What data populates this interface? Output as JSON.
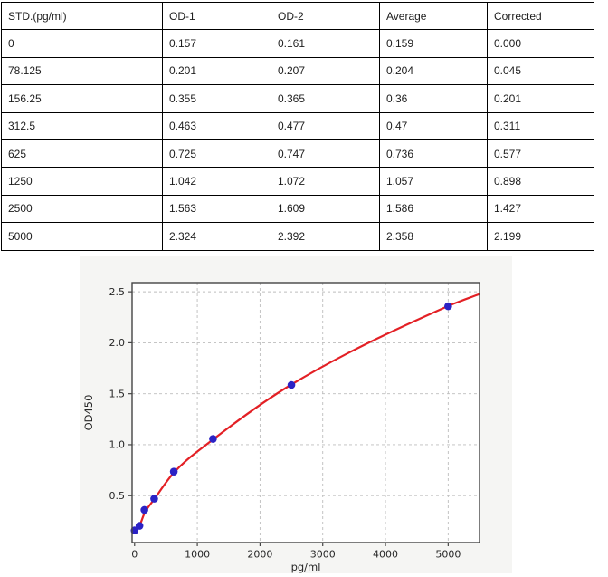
{
  "table": {
    "columns": [
      "STD.(pg/ml)",
      "OD-1",
      "OD-2",
      "Average",
      "Corrected"
    ],
    "rows": [
      [
        "0",
        "0.157",
        "0.161",
        "0.159",
        "0.000"
      ],
      [
        "78.125",
        "0.201",
        "0.207",
        "0.204",
        "0.045"
      ],
      [
        "156.25",
        "0.355",
        "0.365",
        "0.36",
        "0.201"
      ],
      [
        "312.5",
        "0.463",
        "0.477",
        "0.47",
        "0.311"
      ],
      [
        "625",
        "0.725",
        "0.747",
        "0.736",
        "0.577"
      ],
      [
        "1250",
        "1.042",
        "1.072",
        "1.057",
        "0.898"
      ],
      [
        "2500",
        "1.563",
        "1.609",
        "1.586",
        "1.427"
      ],
      [
        "5000",
        "2.324",
        "2.392",
        "2.358",
        "2.199"
      ]
    ]
  },
  "chart_data": {
    "type": "scatter",
    "title": "",
    "xlabel": "pg/ml",
    "ylabel": "OD450",
    "x": [
      0,
      78.125,
      156.25,
      312.5,
      625,
      1250,
      2500,
      5000
    ],
    "y": [
      0.159,
      0.204,
      0.36,
      0.47,
      0.736,
      1.057,
      1.586,
      2.358
    ],
    "fit_curve": [
      [
        0,
        0.14
      ],
      [
        78.125,
        0.205
      ],
      [
        156.25,
        0.325
      ],
      [
        312.5,
        0.465
      ],
      [
        625,
        0.725
      ],
      [
        1250,
        1.05
      ],
      [
        2500,
        1.59
      ],
      [
        5000,
        2.36
      ],
      [
        5500,
        2.478
      ]
    ],
    "x_ticks": [
      0,
      1000,
      2000,
      3000,
      4000,
      5000
    ],
    "y_ticks": [
      0.5,
      1.0,
      1.5,
      2.0,
      2.5
    ],
    "xlim": [
      -40,
      5500
    ],
    "ylim": [
      0.04,
      2.59
    ],
    "grid": true,
    "legend": "none",
    "colors": {
      "curve": "#e32025",
      "points": "#2b22c5",
      "figure_bg": "#f5f5f3",
      "plot_bg": "#ffffff",
      "grid": "#bdbdbd",
      "axis": "#444444",
      "text": "#262626"
    }
  }
}
